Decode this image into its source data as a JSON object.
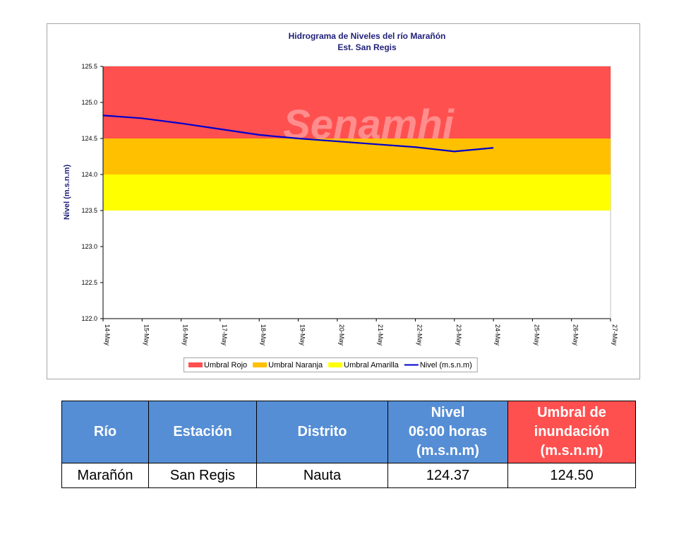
{
  "chart_data": {
    "type": "line",
    "title": "Hidrograma de Niveles del río Marañón",
    "subtitle": "Est. San Regis",
    "watermark": "Senamhi",
    "y_label": "Nivel (m.s.n.m)",
    "categories": [
      "14-May",
      "15-May",
      "16-May",
      "17-May",
      "18-May",
      "19-May",
      "20-May",
      "21-May",
      "22-May",
      "23-May",
      "24-May",
      "25-May",
      "26-May",
      "27-May"
    ],
    "ylim": [
      122,
      125.5
    ],
    "yticks": [
      {
        "value": 122,
        "label": "122.0"
      },
      122.5,
      {
        "value": 123,
        "label": "123.0"
      },
      123.5,
      {
        "value": 124,
        "label": "124.0"
      },
      124.5,
      {
        "value": 125,
        "label": "125.0"
      },
      125.5
    ],
    "legend": "bottom",
    "series": [
      {
        "name": "Umbral Rojo",
        "color": "#ff5050",
        "type": "band",
        "range": [
          124.5,
          125.5
        ]
      },
      {
        "name": "Umbral Naranja",
        "color": "#ffc000",
        "type": "band",
        "range": [
          124,
          124.5
        ]
      },
      {
        "name": "Umbral Amarilla",
        "color": "#ffff00",
        "type": "band",
        "range": [
          123.5,
          124
        ]
      },
      {
        "name": "Nivel (m.s.n.m)",
        "color": "#0000cc",
        "type": "line",
        "values": [
          124.82,
          124.78,
          124.71,
          124.63,
          124.55,
          124.5,
          124.46,
          124.42,
          124.38,
          124.32,
          124.37,
          null,
          null,
          null
        ]
      }
    ]
  },
  "table": {
    "header": [
      "Río",
      "Estación",
      "Distrito",
      "Nivel\n06:00 horas\n(m.s.n.m)",
      "Umbral de\ninundación\n(m.s.n.m)"
    ],
    "rows": [
      [
        "Marañón",
        "San Regis",
        "Nauta",
        "124.37",
        "124.50"
      ]
    ]
  }
}
